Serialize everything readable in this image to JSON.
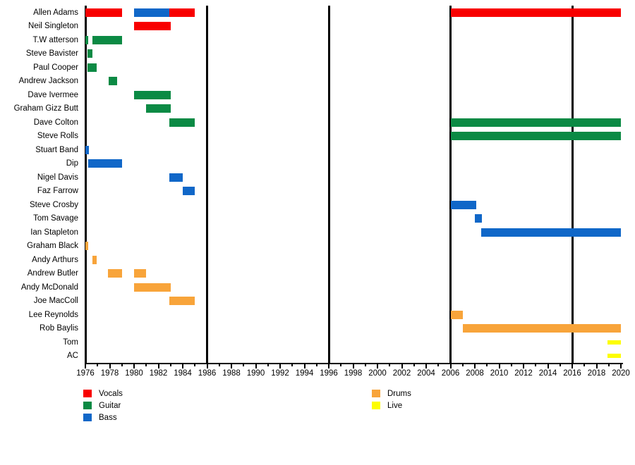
{
  "chart_data": {
    "type": "bar",
    "subtype": "horizontal-gantt-member-timeline",
    "title": "",
    "xlabel": "",
    "ylabel": "",
    "grid": false,
    "legend_position": "bottom",
    "x_axis": {
      "min": 1976,
      "max": 2020,
      "major_tick_years": [
        1976,
        1978,
        1980,
        1982,
        1984,
        1986,
        1988,
        1990,
        1992,
        1994,
        1996,
        1998,
        2000,
        2002,
        2004,
        2006,
        2008,
        2010,
        2012,
        2014,
        2016,
        2018,
        2020
      ],
      "minor_tick_step": 1
    },
    "event_line_years": [
      1986,
      1996,
      2006,
      2016
    ],
    "roles": {
      "vocals": {
        "label": "Vocals",
        "color": "#f80000"
      },
      "guitar": {
        "label": "Guitar",
        "color": "#0b8a44"
      },
      "bass": {
        "label": "Bass",
        "color": "#1067c8"
      },
      "drums": {
        "label": "Drums",
        "color": "#f8a43a"
      },
      "live": {
        "label": "Live",
        "color": "#fdfd00",
        "thin": true
      }
    },
    "members": [
      {
        "name": "Allen Adams",
        "bars": [
          {
            "start": 1976,
            "end": 1979,
            "role": "vocals"
          },
          {
            "start": 1980,
            "end": 1982.9,
            "role": "bass"
          },
          {
            "start": 1982.9,
            "end": 1985,
            "role": "vocals"
          },
          {
            "start": 2006,
            "end": 2020,
            "role": "vocals"
          }
        ]
      },
      {
        "name": "Neil Singleton",
        "bars": [
          {
            "start": 1980,
            "end": 1983,
            "role": "vocals"
          }
        ]
      },
      {
        "name": "T.W atterson",
        "bars": [
          {
            "start": 1976,
            "end": 1976.25,
            "role": "guitar"
          },
          {
            "start": 1976.6,
            "end": 1979,
            "role": "guitar"
          }
        ]
      },
      {
        "name": "Steve Bavister",
        "bars": [
          {
            "start": 1976.2,
            "end": 1976.6,
            "role": "guitar"
          }
        ]
      },
      {
        "name": "Paul Cooper",
        "bars": [
          {
            "start": 1976.2,
            "end": 1976.95,
            "role": "guitar"
          }
        ]
      },
      {
        "name": "Andrew Jackson",
        "bars": [
          {
            "start": 1977.9,
            "end": 1978.6,
            "role": "guitar"
          }
        ]
      },
      {
        "name": "Dave Ivermee",
        "bars": [
          {
            "start": 1980,
            "end": 1983,
            "role": "guitar"
          }
        ]
      },
      {
        "name": "Graham Gizz Butt",
        "bars": [
          {
            "start": 1981,
            "end": 1983,
            "role": "guitar"
          }
        ]
      },
      {
        "name": "Dave Colton",
        "bars": [
          {
            "start": 1982.9,
            "end": 1985,
            "role": "guitar"
          },
          {
            "start": 2006,
            "end": 2020,
            "role": "guitar"
          }
        ]
      },
      {
        "name": "Steve Rolls",
        "bars": [
          {
            "start": 2006,
            "end": 2020,
            "role": "guitar"
          }
        ]
      },
      {
        "name": "Stuart Band",
        "bars": [
          {
            "start": 1976,
            "end": 1976.3,
            "role": "bass"
          }
        ]
      },
      {
        "name": "Dip",
        "bars": [
          {
            "start": 1976.25,
            "end": 1979,
            "role": "bass"
          }
        ]
      },
      {
        "name": "Nigel Davis",
        "bars": [
          {
            "start": 1982.9,
            "end": 1984,
            "role": "bass"
          }
        ]
      },
      {
        "name": "Faz Farrow",
        "bars": [
          {
            "start": 1984,
            "end": 1985,
            "role": "bass"
          }
        ]
      },
      {
        "name": "Steve Crosby",
        "bars": [
          {
            "start": 2006,
            "end": 2008.1,
            "role": "bass"
          }
        ]
      },
      {
        "name": "Tom Savage",
        "bars": [
          {
            "start": 2008,
            "end": 2008.6,
            "role": "bass"
          }
        ]
      },
      {
        "name": "Ian Stapleton",
        "bars": [
          {
            "start": 2008.5,
            "end": 2020,
            "role": "bass"
          }
        ]
      },
      {
        "name": "Graham Black",
        "bars": [
          {
            "start": 1976,
            "end": 1976.25,
            "role": "drums"
          }
        ]
      },
      {
        "name": "Andy Arthurs",
        "bars": [
          {
            "start": 1976.6,
            "end": 1976.95,
            "role": "drums"
          }
        ]
      },
      {
        "name": "Andrew Butler",
        "bars": [
          {
            "start": 1977.85,
            "end": 1979,
            "role": "drums"
          },
          {
            "start": 1980,
            "end": 1981,
            "role": "drums"
          }
        ]
      },
      {
        "name": "Andy McDonald",
        "bars": [
          {
            "start": 1980,
            "end": 1983,
            "role": "drums"
          }
        ]
      },
      {
        "name": "Joe MacColl",
        "bars": [
          {
            "start": 1982.9,
            "end": 1985,
            "role": "drums"
          }
        ]
      },
      {
        "name": "Lee Reynolds",
        "bars": [
          {
            "start": 2006,
            "end": 2007,
            "role": "drums"
          }
        ]
      },
      {
        "name": "Rob Baylis",
        "bars": [
          {
            "start": 2007,
            "end": 2020,
            "role": "drums"
          }
        ]
      },
      {
        "name": "Tom",
        "bars": [
          {
            "start": 2018.9,
            "end": 2020,
            "role": "live"
          }
        ]
      },
      {
        "name": "AC",
        "bars": [
          {
            "start": 2018.9,
            "end": 2020,
            "role": "live"
          }
        ]
      }
    ],
    "legend": {
      "columns": [
        [
          "vocals",
          "guitar",
          "bass"
        ],
        [
          "drums",
          "live"
        ]
      ]
    }
  }
}
